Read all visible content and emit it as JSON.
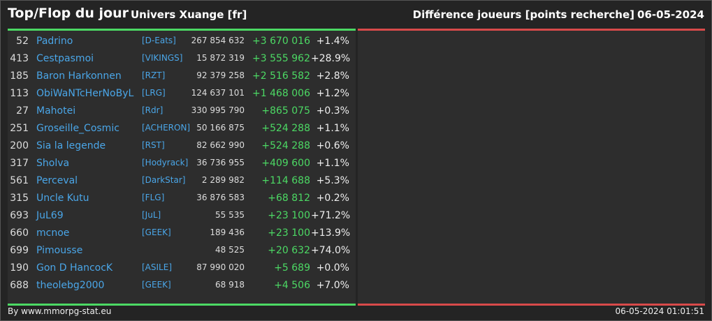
{
  "header": {
    "title": "Top/Flop du jour",
    "universe": "Univers Xuange [fr]",
    "metric": "Différence joueurs [points recherche]",
    "date": "06-05-2024"
  },
  "rows": [
    {
      "rank": "52",
      "name": "Padrino",
      "alliance": "[D-Eats]",
      "points": "267 854 632",
      "diff": "+3 670 016",
      "pct": "+1.4%"
    },
    {
      "rank": "413",
      "name": "Cestpasmoi",
      "alliance": "[VIKINGS]",
      "points": "15 872 319",
      "diff": "+3 555 962",
      "pct": "+28.9%"
    },
    {
      "rank": "185",
      "name": "Baron Harkonnen",
      "alliance": "[RZT]",
      "points": "92 379 258",
      "diff": "+2 516 582",
      "pct": "+2.8%"
    },
    {
      "rank": "113",
      "name": "ObiWaNTcHerNoByL",
      "alliance": "[LRG]",
      "points": "124 637 101",
      "diff": "+1 468 006",
      "pct": "+1.2%"
    },
    {
      "rank": "27",
      "name": "Mahotei",
      "alliance": "[Rdr]",
      "points": "330 995 790",
      "diff": "+865 075",
      "pct": "+0.3%"
    },
    {
      "rank": "251",
      "name": "Groseille_Cosmic",
      "alliance": "[ACHERON]",
      "points": "50 166 875",
      "diff": "+524 288",
      "pct": "+1.1%"
    },
    {
      "rank": "200",
      "name": "Sia la legende",
      "alliance": "[RST]",
      "points": "82 662 990",
      "diff": "+524 288",
      "pct": "+0.6%"
    },
    {
      "rank": "317",
      "name": "Sholva",
      "alliance": "[Hodyrack]",
      "points": "36 736 955",
      "diff": "+409 600",
      "pct": "+1.1%"
    },
    {
      "rank": "561",
      "name": "Perceval",
      "alliance": "[DarkStar]",
      "points": "2 289 982",
      "diff": "+114 688",
      "pct": "+5.3%"
    },
    {
      "rank": "315",
      "name": "Uncle Kutu",
      "alliance": "[FLG]",
      "points": "36 876 583",
      "diff": "+68 812",
      "pct": "+0.2%"
    },
    {
      "rank": "693",
      "name": "JuL69",
      "alliance": "[JuL]",
      "points": "55 535",
      "diff": "+23 100",
      "pct": "+71.2%"
    },
    {
      "rank": "660",
      "name": "mcnoe",
      "alliance": "[GEEK]",
      "points": "189 436",
      "diff": "+23 100",
      "pct": "+13.9%"
    },
    {
      "rank": "699",
      "name": "Pimousse",
      "alliance": "",
      "points": "48 525",
      "diff": "+20 632",
      "pct": "+74.0%"
    },
    {
      "rank": "190",
      "name": "Gon D HancocK",
      "alliance": "[ASILE]",
      "points": "87 990 020",
      "diff": "+5 689",
      "pct": "+0.0%"
    },
    {
      "rank": "688",
      "name": "theolebg2000",
      "alliance": "[GEEK]",
      "points": "68 918",
      "diff": "+4 506",
      "pct": "+7.0%"
    }
  ],
  "footer": {
    "credit": "By www.mmorpg-stat.eu",
    "timestamp": "06-05-2024 01:01:51"
  },
  "colors": {
    "top": "#4cd964",
    "flop": "#d84a4a",
    "link": "#4aa6e8"
  }
}
